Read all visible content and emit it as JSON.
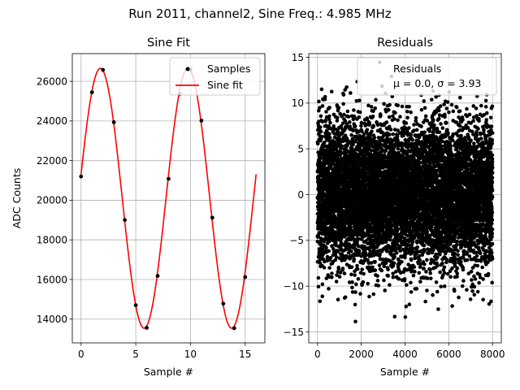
{
  "figure": {
    "suptitle": "Run 2011, channel2, Sine Freq.: 4.985 MHz"
  },
  "chart_data": [
    {
      "type": "line",
      "title": "Sine Fit",
      "xlabel": "Sample #",
      "ylabel": "ADC Counts",
      "xlim": [
        -0.8,
        16.8
      ],
      "ylim": [
        12800,
        27400
      ],
      "xticks": [
        0,
        5,
        10,
        15
      ],
      "yticks": [
        14000,
        16000,
        18000,
        20000,
        22000,
        24000,
        26000
      ],
      "grid": true,
      "legend": {
        "placement": "upper-right",
        "entries": [
          "Samples",
          "Sine fit"
        ]
      },
      "series": [
        {
          "name": "Samples",
          "kind": "scatter",
          "color": "#000000",
          "x": [
            0,
            1,
            2,
            3,
            4,
            5,
            6,
            7,
            8,
            9,
            10,
            11,
            12,
            13,
            14,
            15
          ],
          "y": [
            21200,
            25450,
            26580,
            23940,
            19000,
            14700,
            13560,
            16180,
            21080,
            25350,
            26600,
            24020,
            19120,
            14780,
            13540,
            16120
          ]
        },
        {
          "name": "Sine fit",
          "kind": "line",
          "color": "#ff0000",
          "function": {
            "offset": 20100,
            "amplitude": 6560,
            "period": 8.0,
            "phase": 0.185,
            "x_start": 0,
            "x_end": 16
          }
        }
      ]
    },
    {
      "type": "scatter",
      "title": "Residuals",
      "xlabel": "Sample #",
      "ylabel": "",
      "xlim": [
        -400,
        8400
      ],
      "ylim": [
        -16.2,
        15.4
      ],
      "xticks": [
        0,
        2000,
        4000,
        6000,
        8000
      ],
      "yticks": [
        -15,
        -10,
        -5,
        0,
        5,
        10,
        15
      ],
      "grid": true,
      "legend": {
        "placement": "upper-right",
        "entries": [
          "Residuals",
          "μ = 0.0, σ = 3.93"
        ]
      },
      "series": [
        {
          "name": "Residuals",
          "color": "#000000",
          "n_points": 8000,
          "x_range": [
            0,
            8000
          ],
          "mean": 0.0,
          "std": 3.93
        }
      ]
    }
  ]
}
